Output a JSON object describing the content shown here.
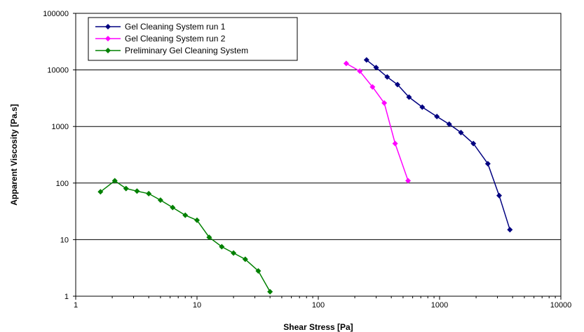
{
  "chart_data": {
    "type": "line",
    "title": "",
    "xlabel": "Shear Stress [Pa]",
    "ylabel": "Apparent Viscosity [Pa.s]",
    "x_scale": "log",
    "y_scale": "log",
    "xlim": [
      1,
      10000
    ],
    "ylim": [
      1,
      100000
    ],
    "x_ticks": [
      "1",
      "10",
      "100",
      "1000",
      "10000"
    ],
    "y_ticks": [
      "1",
      "10",
      "100",
      "1000",
      "10000",
      "100000"
    ],
    "grid": "horizontal major gridlines",
    "legend_position": "top-left",
    "series": [
      {
        "name": "Gel Cleaning System run 1",
        "color": "#000080",
        "x": [
          250,
          300,
          370,
          450,
          560,
          720,
          950,
          1200,
          1500,
          1900,
          2500,
          3100,
          3800
        ],
        "y": [
          15000,
          11000,
          7500,
          5500,
          3300,
          2200,
          1500,
          1100,
          780,
          500,
          220,
          60,
          15
        ]
      },
      {
        "name": "Gel Cleaning System run 2",
        "color": "#ff00ff",
        "x": [
          170,
          220,
          280,
          350,
          430,
          550
        ],
        "y": [
          13000,
          9500,
          5000,
          2600,
          500,
          110
        ]
      },
      {
        "name": "Preliminary Gel Cleaning System",
        "color": "#008000",
        "x": [
          1.6,
          2.1,
          2.6,
          3.2,
          4.0,
          5.0,
          6.3,
          8.0,
          10,
          12.6,
          16,
          20,
          25,
          32,
          40
        ],
        "y": [
          70,
          110,
          80,
          72,
          65,
          50,
          37,
          27,
          22,
          11,
          7.5,
          5.8,
          4.5,
          2.8,
          1.2
        ]
      }
    ]
  }
}
